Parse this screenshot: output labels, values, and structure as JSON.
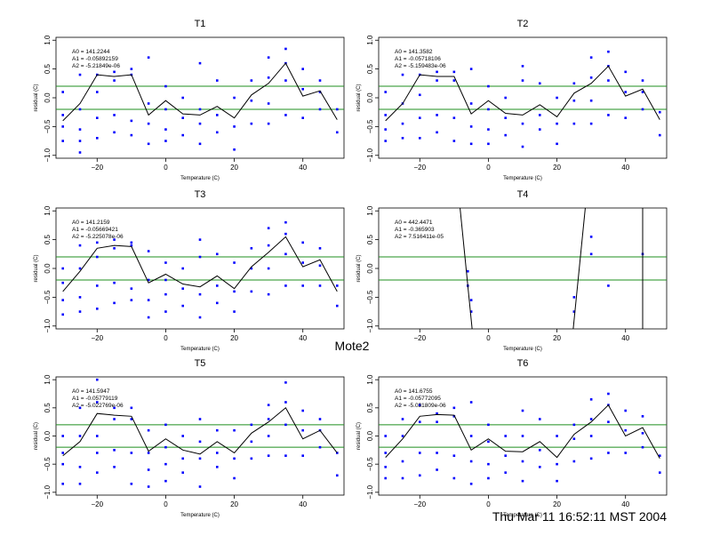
{
  "figure": {
    "title": "Mote2",
    "timestamp": "Thu Mar 11 16:52:11 MST 2004",
    "colors": {
      "points": "#0000ff",
      "fit_line": "#000000",
      "reference_lines": "#1f8f1f"
    }
  },
  "chart_data": [
    {
      "type": "scatter",
      "title": "T1",
      "xlabel": "Temperature (C)",
      "ylabel": "residual (C)",
      "xlim": [
        -32,
        52
      ],
      "ylim": [
        -1.05,
        1.05
      ],
      "xticks": [
        -20,
        0,
        20,
        40
      ],
      "yticks": [
        -1.0,
        -0.5,
        0.0,
        0.5,
        1.0
      ],
      "reference_lines": [
        0.2,
        -0.2
      ],
      "annotations": [
        "A0 = 141.2244",
        "A1 = -0.05892159",
        "A2 = -5.21849e-06"
      ],
      "series": [
        {
          "kind": "points",
          "x": [
            -30,
            -30,
            -30,
            -30,
            -25,
            -25,
            -25,
            -25,
            -25,
            -20,
            -20,
            -20,
            -20,
            -15,
            -15,
            -15,
            -15,
            -10,
            -10,
            -10,
            -10,
            -5,
            -5,
            -5,
            -5,
            0,
            0,
            0,
            0,
            5,
            5,
            5,
            10,
            10,
            10,
            10,
            15,
            15,
            15,
            20,
            20,
            20,
            25,
            25,
            25,
            30,
            30,
            30,
            30,
            35,
            35,
            35,
            35,
            40,
            40,
            40,
            45,
            45,
            45,
            50,
            50
          ],
          "y": [
            0.1,
            -0.3,
            -0.5,
            -0.75,
            0.4,
            -0.2,
            -0.55,
            -0.75,
            -0.95,
            0.4,
            0.1,
            -0.35,
            -0.7,
            0.45,
            0.3,
            -0.3,
            -0.6,
            0.5,
            0.4,
            -0.4,
            -0.65,
            0.7,
            -0.1,
            -0.45,
            -0.8,
            0.2,
            -0.2,
            -0.55,
            -0.75,
            0.0,
            -0.35,
            -0.65,
            0.6,
            -0.2,
            -0.45,
            -0.8,
            0.3,
            -0.3,
            -0.6,
            0.0,
            -0.5,
            -0.9,
            0.3,
            -0.05,
            -0.45,
            0.7,
            0.35,
            -0.1,
            -0.45,
            0.85,
            0.6,
            0.3,
            -0.3,
            0.5,
            0.15,
            -0.35,
            0.3,
            0.1,
            -0.2,
            -0.2,
            -0.6
          ]
        },
        {
          "kind": "line",
          "x": [
            -30,
            -25,
            -20,
            -15,
            -10,
            -5,
            0,
            5,
            10,
            15,
            20,
            25,
            30,
            35,
            40,
            45,
            50
          ],
          "y": [
            -0.4,
            -0.1,
            0.4,
            0.37,
            0.4,
            -0.3,
            -0.05,
            -0.28,
            -0.3,
            -0.15,
            -0.35,
            0.05,
            0.25,
            0.6,
            0.03,
            0.12,
            -0.38
          ]
        }
      ]
    },
    {
      "type": "scatter",
      "title": "T2",
      "xlabel": "Temperature (C)",
      "ylabel": "residual (C)",
      "xlim": [
        -32,
        52
      ],
      "ylim": [
        -1.05,
        1.05
      ],
      "xticks": [
        -20,
        0,
        20,
        40
      ],
      "yticks": [
        -1.0,
        -0.5,
        0.0,
        0.5,
        1.0
      ],
      "reference_lines": [
        0.2,
        -0.2
      ],
      "annotations": [
        "A0 = 141.3582",
        "A1 = -0.05718106",
        "A2 = -5.159483e-06"
      ],
      "series": [
        {
          "kind": "points",
          "x": [
            -30,
            -30,
            -30,
            -30,
            -25,
            -25,
            -25,
            -25,
            -20,
            -20,
            -20,
            -20,
            -15,
            -15,
            -15,
            -15,
            -10,
            -10,
            -10,
            -10,
            -5,
            -5,
            -5,
            -5,
            0,
            0,
            0,
            0,
            5,
            5,
            5,
            10,
            10,
            10,
            10,
            15,
            15,
            15,
            20,
            20,
            20,
            25,
            25,
            25,
            30,
            30,
            30,
            30,
            35,
            35,
            35,
            35,
            40,
            40,
            40,
            45,
            45,
            45,
            50,
            50
          ],
          "y": [
            0.1,
            -0.3,
            -0.55,
            -0.75,
            0.4,
            -0.1,
            -0.45,
            -0.7,
            0.4,
            0.05,
            -0.35,
            -0.7,
            0.45,
            0.3,
            -0.3,
            -0.6,
            0.45,
            0.3,
            -0.35,
            -0.75,
            0.5,
            -0.1,
            -0.5,
            -0.8,
            0.2,
            -0.2,
            -0.55,
            -0.8,
            0.0,
            -0.35,
            -0.65,
            0.55,
            0.3,
            -0.45,
            -0.85,
            0.25,
            -0.3,
            -0.55,
            0.0,
            -0.45,
            -0.8,
            0.25,
            -0.05,
            -0.45,
            0.7,
            0.35,
            -0.05,
            -0.45,
            0.8,
            0.55,
            0.3,
            -0.3,
            0.45,
            0.1,
            -0.35,
            0.3,
            0.1,
            -0.2,
            -0.25,
            -0.65
          ]
        },
        {
          "kind": "line",
          "x": [
            -30,
            -25,
            -20,
            -15,
            -10,
            -5,
            0,
            5,
            10,
            15,
            20,
            25,
            30,
            35,
            40,
            45,
            50
          ],
          "y": [
            -0.4,
            -0.1,
            0.4,
            0.37,
            0.37,
            -0.28,
            -0.05,
            -0.27,
            -0.3,
            -0.12,
            -0.33,
            0.08,
            0.25,
            0.55,
            0.03,
            0.15,
            -0.38
          ]
        }
      ]
    },
    {
      "type": "scatter",
      "title": "T3",
      "xlabel": "Temperature (C)",
      "ylabel": "residual (C)",
      "xlim": [
        -32,
        52
      ],
      "ylim": [
        -1.05,
        1.05
      ],
      "xticks": [
        -20,
        0,
        20,
        40
      ],
      "yticks": [
        -1.0,
        -0.5,
        0.0,
        0.5,
        1.0
      ],
      "reference_lines": [
        0.2,
        -0.2
      ],
      "annotations": [
        "A0 = 141.2159",
        "A1 = -0.05669421",
        "A2 = -5.225078e-06"
      ],
      "series": [
        {
          "kind": "points",
          "x": [
            -30,
            -30,
            -30,
            -30,
            -25,
            -25,
            -25,
            -25,
            -20,
            -20,
            -20,
            -20,
            -15,
            -15,
            -15,
            -15,
            -10,
            -10,
            -10,
            -10,
            -5,
            -5,
            -5,
            -5,
            0,
            0,
            0,
            0,
            5,
            5,
            5,
            10,
            10,
            10,
            10,
            15,
            15,
            15,
            20,
            20,
            20,
            25,
            25,
            25,
            30,
            30,
            30,
            30,
            35,
            35,
            35,
            35,
            40,
            40,
            40,
            45,
            45,
            45,
            50,
            50
          ],
          "y": [
            0.0,
            -0.25,
            -0.55,
            -0.8,
            0.4,
            0.0,
            -0.5,
            -0.75,
            0.45,
            0.2,
            -0.3,
            -0.7,
            0.5,
            0.35,
            -0.25,
            -0.6,
            0.45,
            0.4,
            -0.35,
            -0.55,
            0.3,
            -0.2,
            -0.55,
            -0.85,
            0.1,
            -0.2,
            -0.45,
            -0.75,
            0.0,
            -0.35,
            -0.65,
            0.5,
            0.2,
            -0.45,
            -0.85,
            0.25,
            -0.3,
            -0.6,
            0.1,
            -0.4,
            -0.75,
            0.35,
            0.0,
            -0.4,
            0.7,
            0.4,
            0.0,
            -0.45,
            0.8,
            0.6,
            0.25,
            -0.3,
            0.45,
            0.1,
            -0.3,
            0.35,
            0.05,
            -0.3,
            -0.3,
            -0.65
          ]
        },
        {
          "kind": "line",
          "x": [
            -30,
            -25,
            -20,
            -15,
            -10,
            -5,
            0,
            5,
            10,
            15,
            20,
            25,
            30,
            35,
            40,
            45,
            50
          ],
          "y": [
            -0.4,
            -0.05,
            0.35,
            0.4,
            0.38,
            -0.25,
            -0.1,
            -0.27,
            -0.32,
            -0.13,
            -0.35,
            0.03,
            0.28,
            0.55,
            0.03,
            0.15,
            -0.4
          ]
        }
      ]
    },
    {
      "type": "scatter",
      "title": "T4",
      "xlabel": "Temperature (C)",
      "ylabel": "residual (C)",
      "xlim": [
        -32,
        52
      ],
      "ylim": [
        -1.05,
        1.05
      ],
      "xticks": [
        -20,
        0,
        20,
        40
      ],
      "yticks": [
        -1.0,
        -0.5,
        0.0,
        0.5,
        1.0
      ],
      "reference_lines": [
        0.2,
        -0.2
      ],
      "annotations": [
        "A0 = 442.4471",
        "A1 = -0.365903",
        "A2 = 7.516411e-05"
      ],
      "series": [
        {
          "kind": "points",
          "x": [
            -6,
            -6,
            -5,
            -5,
            25,
            25,
            30,
            30,
            35,
            45
          ],
          "y": [
            -0.05,
            -0.3,
            -0.55,
            -0.75,
            -0.5,
            -0.75,
            0.55,
            0.25,
            -0.3,
            0.25
          ]
        },
        {
          "kind": "line",
          "x": [
            -8.5,
            -4.5
          ],
          "y": [
            1.2,
            -1.2
          ]
        },
        {
          "kind": "line",
          "x": [
            24.5,
            28.5
          ],
          "y": [
            -1.2,
            1.2
          ]
        },
        {
          "kind": "line",
          "x": [
            45,
            45
          ],
          "y": [
            -1.2,
            1.2
          ]
        }
      ]
    },
    {
      "type": "scatter",
      "title": "T5",
      "xlabel": "Temperature (C)",
      "ylabel": "residual (C)",
      "xlim": [
        -32,
        52
      ],
      "ylim": [
        -1.05,
        1.05
      ],
      "xticks": [
        -20,
        0,
        20,
        40
      ],
      "yticks": [
        -1.0,
        -0.5,
        0.0,
        0.5,
        1.0
      ],
      "reference_lines": [
        0.2,
        -0.2
      ],
      "annotations": [
        "A0 = 141.5947",
        "A1 = -0.05779119",
        "A2 = -5.022769e-06"
      ],
      "series": [
        {
          "kind": "points",
          "x": [
            -30,
            -30,
            -30,
            -30,
            -25,
            -25,
            -25,
            -25,
            -20,
            -20,
            -20,
            -20,
            -20,
            -15,
            -15,
            -15,
            -15,
            -10,
            -10,
            -10,
            -10,
            -5,
            -5,
            -5,
            -5,
            0,
            0,
            0,
            0,
            5,
            5,
            5,
            10,
            10,
            10,
            10,
            15,
            15,
            15,
            20,
            20,
            20,
            25,
            25,
            25,
            30,
            30,
            30,
            30,
            35,
            35,
            35,
            35,
            40,
            40,
            40,
            45,
            45,
            45,
            50,
            50
          ],
          "y": [
            0.0,
            -0.3,
            -0.5,
            -0.85,
            0.5,
            0.0,
            -0.55,
            -0.85,
            1.0,
            0.6,
            0.0,
            -0.3,
            -0.65,
            0.5,
            0.3,
            -0.25,
            -0.55,
            0.5,
            0.3,
            -0.3,
            -0.85,
            0.1,
            -0.3,
            -0.6,
            -0.9,
            0.2,
            -0.2,
            -0.5,
            -0.8,
            0.0,
            -0.4,
            -0.65,
            0.3,
            -0.1,
            -0.4,
            -0.9,
            0.1,
            -0.3,
            -0.55,
            0.1,
            -0.4,
            -0.75,
            0.2,
            -0.1,
            -0.4,
            0.55,
            0.3,
            0.0,
            -0.35,
            0.95,
            0.6,
            0.2,
            -0.35,
            0.45,
            0.1,
            -0.35,
            0.3,
            0.1,
            -0.2,
            -0.3,
            -0.7
          ]
        },
        {
          "kind": "line",
          "x": [
            -30,
            -25,
            -20,
            -15,
            -10,
            -5,
            0,
            5,
            10,
            15,
            20,
            25,
            30,
            35,
            40,
            45,
            50
          ],
          "y": [
            -0.35,
            -0.1,
            0.4,
            0.37,
            0.35,
            -0.27,
            -0.05,
            -0.25,
            -0.32,
            -0.1,
            -0.3,
            0.05,
            0.25,
            0.5,
            -0.05,
            0.1,
            -0.3
          ]
        }
      ]
    },
    {
      "type": "scatter",
      "title": "T6",
      "xlabel": "Temperature (C)",
      "ylabel": "residual (C)",
      "xlim": [
        -32,
        52
      ],
      "ylim": [
        -1.05,
        1.05
      ],
      "xticks": [
        -20,
        0,
        20,
        40
      ],
      "yticks": [
        -1.0,
        -0.5,
        0.0,
        0.5,
        1.0
      ],
      "reference_lines": [
        0.2,
        -0.2
      ],
      "annotations": [
        "A0 = 141.6755",
        "A1 = -0.05772095",
        "A2 = -5.031809e-06"
      ],
      "series": [
        {
          "kind": "points",
          "x": [
            -30,
            -30,
            -30,
            -30,
            -25,
            -25,
            -25,
            -25,
            -20,
            -20,
            -20,
            -20,
            -15,
            -15,
            -15,
            -15,
            -10,
            -10,
            -10,
            -10,
            -5,
            -5,
            -5,
            -5,
            0,
            0,
            0,
            0,
            5,
            5,
            5,
            10,
            10,
            10,
            10,
            15,
            15,
            15,
            20,
            20,
            20,
            25,
            25,
            25,
            30,
            30,
            30,
            30,
            35,
            35,
            35,
            35,
            40,
            40,
            40,
            45,
            45,
            45,
            50,
            50
          ],
          "y": [
            0.0,
            -0.3,
            -0.55,
            -0.75,
            0.3,
            0.0,
            -0.45,
            -0.75,
            0.55,
            0.25,
            -0.3,
            -0.7,
            0.4,
            0.25,
            -0.3,
            -0.6,
            0.5,
            0.35,
            -0.35,
            -0.75,
            0.6,
            0.0,
            -0.45,
            -0.85,
            0.2,
            -0.1,
            -0.5,
            -0.75,
            0.0,
            -0.35,
            -0.65,
            0.45,
            0.0,
            -0.45,
            -0.8,
            0.3,
            -0.25,
            -0.55,
            0.0,
            -0.5,
            -0.8,
            0.2,
            -0.05,
            -0.45,
            0.65,
            0.3,
            0.0,
            -0.4,
            0.75,
            0.55,
            0.25,
            -0.3,
            0.45,
            0.1,
            -0.3,
            0.35,
            0.05,
            -0.2,
            -0.35,
            -0.65
          ]
        },
        {
          "kind": "line",
          "x": [
            -30,
            -25,
            -20,
            -15,
            -10,
            -5,
            0,
            5,
            10,
            15,
            20,
            25,
            30,
            35,
            40,
            45,
            50
          ],
          "y": [
            -0.38,
            -0.05,
            0.35,
            0.38,
            0.37,
            -0.25,
            -0.05,
            -0.27,
            -0.28,
            -0.1,
            -0.38,
            0.03,
            0.25,
            0.55,
            0.0,
            0.15,
            -0.4
          ]
        }
      ]
    }
  ]
}
